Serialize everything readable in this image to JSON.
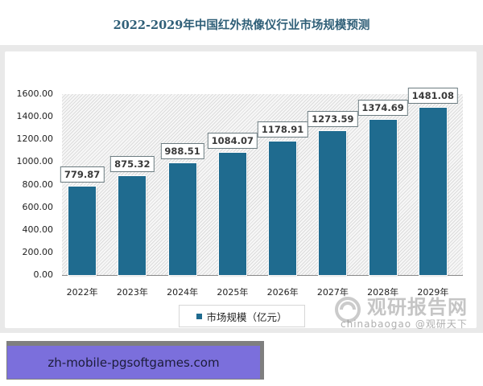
{
  "chart_data": {
    "type": "bar",
    "title": "2022-2029年中国红外热像仪行业市场规模预测",
    "xlabel": "",
    "ylabel": "",
    "categories": [
      "2022年",
      "2023年",
      "2024年",
      "2025年",
      "2026年",
      "2027年",
      "2028年",
      "2029年"
    ],
    "series": [
      {
        "name": "市场规模（亿元）",
        "values": [
          779.87,
          875.32,
          988.51,
          1084.07,
          1178.91,
          1273.59,
          1374.69,
          1481.08
        ],
        "color": "#1f6b8f"
      }
    ],
    "value_labels": [
      "779.87",
      "875.32",
      "988.51",
      "1084.07",
      "1178.91",
      "1273.59",
      "1374.69",
      "1481.08"
    ],
    "yticks": [
      "0.00",
      "200.00",
      "400.00",
      "600.00",
      "800.00",
      "1000.00",
      "1200.00",
      "1400.00",
      "1600.00"
    ],
    "ylim": [
      0,
      1600
    ],
    "grid": false,
    "legend_position": "bottom"
  },
  "legend": {
    "label": "市场规模（亿元）"
  },
  "watermark": {
    "brand": "观研报告网",
    "sub": "chinabaogao @观研天下"
  },
  "banner": {
    "text": "zh-mobile-pgsoftgames.com"
  }
}
